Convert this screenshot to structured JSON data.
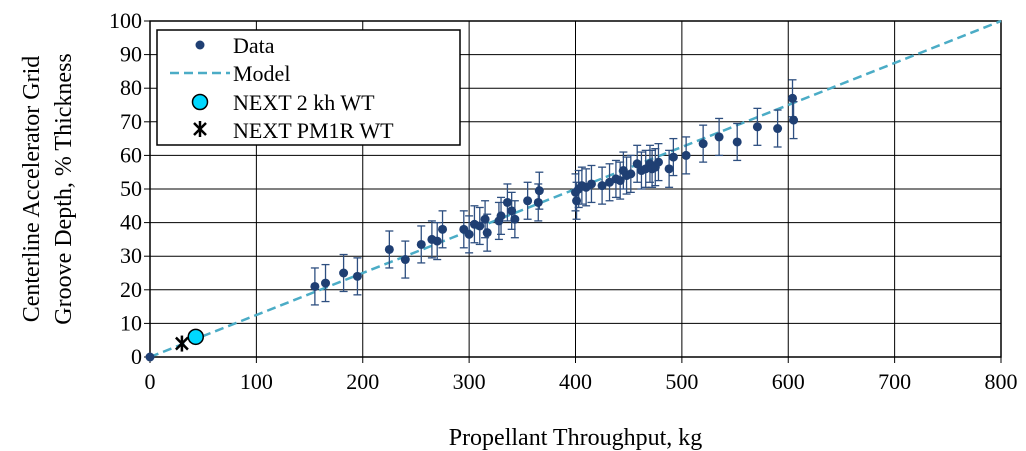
{
  "chart_data": {
    "type": "scatter",
    "title": "",
    "xlabel": "Propellant Throughput, kg",
    "ylabel_lines": [
      "Centerline Accelerator Grid",
      "Groove Depth, % Thickness"
    ],
    "xlim": [
      0,
      800
    ],
    "ylim": [
      0,
      100
    ],
    "x_ticks": [
      "0",
      "100",
      "200",
      "300",
      "400",
      "500",
      "600",
      "700",
      "800"
    ],
    "y_ticks": [
      "0",
      "10",
      "20",
      "30",
      "40",
      "50",
      "60",
      "70",
      "80",
      "90",
      "100"
    ],
    "grid": true,
    "legend_position": "top-left",
    "colors": {
      "data": "#1f3f73",
      "model": "#4bacc6",
      "next2kh": "#00d8ff",
      "pm1r": "#000000"
    },
    "series": [
      {
        "name": "Data",
        "marker": "circle",
        "error": 5.5,
        "points": [
          [
            0,
            0
          ],
          [
            155,
            21
          ],
          [
            165,
            22
          ],
          [
            182,
            25
          ],
          [
            195,
            24
          ],
          [
            225,
            32
          ],
          [
            240,
            29
          ],
          [
            255,
            33.5
          ],
          [
            265,
            35
          ],
          [
            270,
            34.5
          ],
          [
            275,
            38
          ],
          [
            295,
            38
          ],
          [
            300,
            36.5
          ],
          [
            305,
            39.5
          ],
          [
            310,
            39
          ],
          [
            315,
            41
          ],
          [
            317,
            37
          ],
          [
            328,
            40.5
          ],
          [
            330,
            42
          ],
          [
            336,
            46
          ],
          [
            340,
            43.5
          ],
          [
            343,
            41
          ],
          [
            355,
            46.5
          ],
          [
            365,
            46
          ],
          [
            366,
            49.5
          ],
          [
            400,
            49
          ],
          [
            401,
            46.5
          ],
          [
            403,
            50
          ],
          [
            406,
            51
          ],
          [
            410,
            50.5
          ],
          [
            415,
            51.5
          ],
          [
            425,
            51
          ],
          [
            432,
            52
          ],
          [
            438,
            53
          ],
          [
            442,
            52.5
          ],
          [
            445,
            55.5
          ],
          [
            448,
            54
          ],
          [
            452,
            54.5
          ],
          [
            458,
            57.5
          ],
          [
            462,
            55.5
          ],
          [
            466,
            56
          ],
          [
            470,
            57.5
          ],
          [
            472,
            56
          ],
          [
            475,
            56.5
          ],
          [
            478,
            58
          ],
          [
            488,
            56
          ],
          [
            492,
            59.5
          ],
          [
            504,
            60
          ],
          [
            520,
            63.5
          ],
          [
            535,
            65.5
          ],
          [
            552,
            64
          ],
          [
            571,
            68.5
          ],
          [
            590,
            68
          ],
          [
            604,
            77
          ],
          [
            605,
            70.5
          ]
        ]
      },
      {
        "name": "Model",
        "line": "dashed",
        "x": [
          0,
          800
        ],
        "y": [
          0,
          100
        ]
      },
      {
        "name": "NEXT 2 kh WT",
        "marker": "circle-large",
        "points": [
          [
            43,
            6
          ]
        ]
      },
      {
        "name": "NEXT PM1R WT",
        "marker": "asterisk",
        "points": [
          [
            30,
            4
          ]
        ]
      }
    ]
  }
}
